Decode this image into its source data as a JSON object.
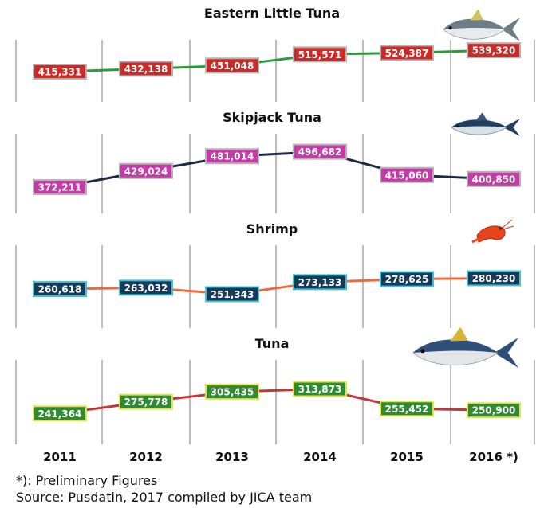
{
  "chart_data": [
    {
      "type": "line",
      "title": "Eastern Little Tuna",
      "icon": "eastern-little-tuna-fish-icon",
      "categories": [
        "2011",
        "2012",
        "2013",
        "2014",
        "2015",
        "2016 *)"
      ],
      "values": [
        415331,
        432138,
        451048,
        515571,
        524387,
        539320
      ],
      "labels": [
        "415,331",
        "432,138",
        "451,048",
        "515,571",
        "524,387",
        "539,320"
      ],
      "line_color": "#2e9a3c",
      "label_fill": "#cc2a27",
      "label_border": "#b3b3b3",
      "label_text": "#ffffff"
    },
    {
      "type": "line",
      "title": "Skipjack Tuna",
      "icon": "skipjack-tuna-fish-icon",
      "categories": [
        "2011",
        "2012",
        "2013",
        "2014",
        "2015",
        "2016 *)"
      ],
      "values": [
        372211,
        429024,
        481014,
        496682,
        415060,
        400850
      ],
      "labels": [
        "372,211",
        "429,024",
        "481,014",
        "496,682",
        "415,060",
        "400,850"
      ],
      "line_color": "#1f2a44",
      "label_fill": "#c53aa8",
      "label_border": "#b3b3b3",
      "label_text": "#ffffff"
    },
    {
      "type": "line",
      "title": "Shrimp",
      "icon": "shrimp-icon",
      "categories": [
        "2011",
        "2012",
        "2013",
        "2014",
        "2015",
        "2016 *)"
      ],
      "values": [
        260618,
        263032,
        251343,
        273133,
        278625,
        280230
      ],
      "labels": [
        "260,618",
        "263,032",
        "251,343",
        "273,133",
        "278,625",
        "280,230"
      ],
      "line_color": "#ee6a3a",
      "label_fill": "#163a5c",
      "label_border": "#3ec3d3",
      "label_text": "#ffffff"
    },
    {
      "type": "line",
      "title": "Tuna",
      "icon": "tuna-fish-icon",
      "categories": [
        "2011",
        "2012",
        "2013",
        "2014",
        "2015",
        "2016 *)"
      ],
      "values": [
        241364,
        275778,
        305435,
        313873,
        255452,
        250900
      ],
      "labels": [
        "241,364",
        "275,778",
        "305,435",
        "313,873",
        "255,452",
        "250,900"
      ],
      "line_color": "#c4363a",
      "label_fill": "#2e8a33",
      "label_border": "#e6e24a",
      "label_text": "#ffffff"
    }
  ],
  "footnote": {
    "preliminary": "*): Preliminary Figures",
    "source": "Source: Pusdatin, 2017 compiled by JICA team"
  }
}
